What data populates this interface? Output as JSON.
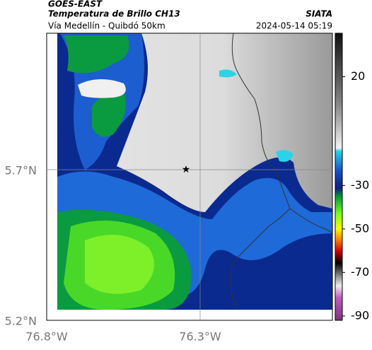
{
  "header": {
    "source": "GOES-EAST",
    "product": "Temperatura de Brillo CH13",
    "org": "SIATA",
    "route": "Vía Medellín - Quibdó 50km",
    "timestamp": "2024-05-14 05:19"
  },
  "map": {
    "lat_labels": [
      "5.7°N",
      "5.2°N"
    ],
    "lon_labels": [
      "76.8°W",
      "76.3°W"
    ]
  },
  "colorbar": {
    "clim": [
      -92,
      40
    ],
    "ticks": [
      20,
      -30,
      -50,
      -70,
      -90
    ]
  }
}
